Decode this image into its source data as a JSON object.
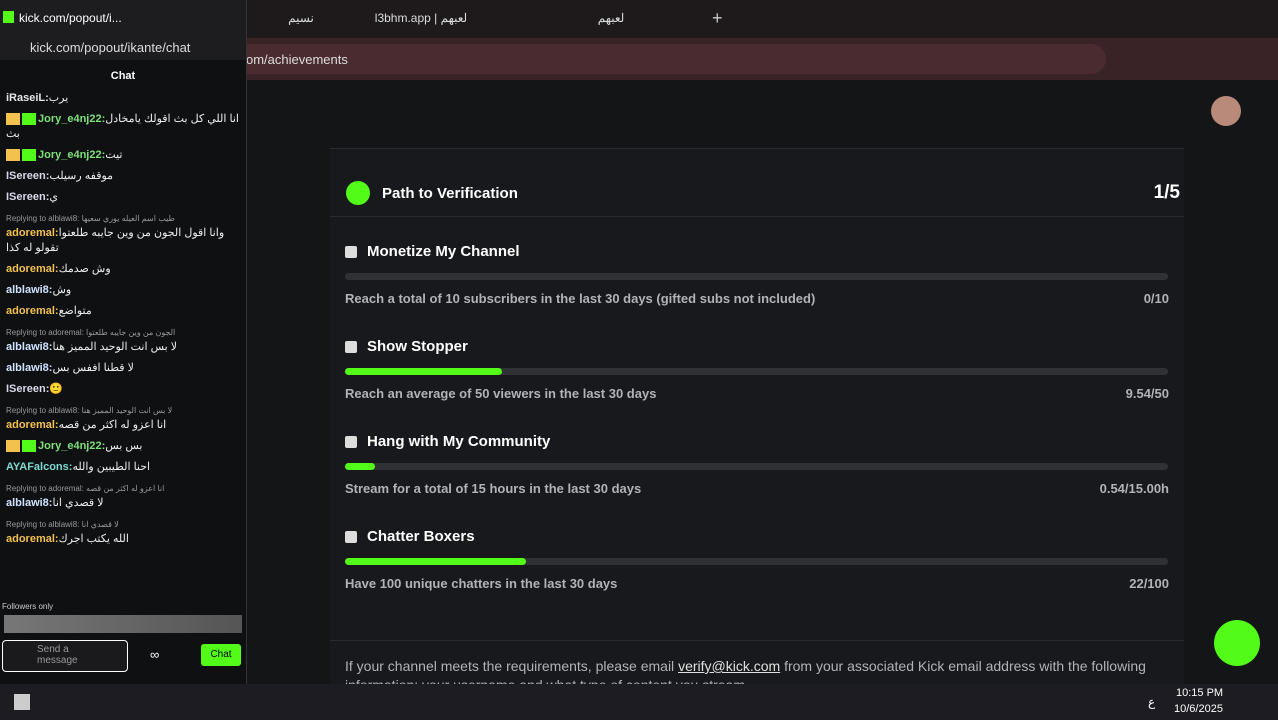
{
  "browser": {
    "tabs": [
      "نسيم",
      "l3bhm.app | لعبهم",
      "لعبهم"
    ],
    "address": "om/achievements"
  },
  "popout": {
    "title": "kick.com/popout/i...",
    "url": "kick.com/popout/ikante/chat",
    "header": "Chat",
    "messages": [
      {
        "user": "iRaseiL:",
        "color": "#e6e6e6",
        "text": "يرب"
      },
      {
        "user": "Jory_e4nj22:",
        "color": "#7ee07a",
        "text": "انا اللي كل بث اقولك يامخادل بث",
        "badges": true
      },
      {
        "user": "Jory_e4nj22:",
        "color": "#7ee07a",
        "text": "تيت",
        "badges": true
      },
      {
        "user": "ISereen:",
        "color": "#d8d8e8",
        "text": "موقفه رسيلب"
      },
      {
        "user": "ISereen:",
        "color": "#d8d8e8",
        "text": "ي"
      },
      {
        "reply": "Replying to alblawi8: طيب اسم العيله يوري سعيها",
        "user": "adoremal:",
        "color": "#f2c14e",
        "text": "وانا اقول الجون من وين جايبه طلعتوا تقولو له كذا"
      },
      {
        "user": "adoremal:",
        "color": "#f2c14e",
        "text": "وش صدمك"
      },
      {
        "user": "alblawi8:",
        "color": "#cfe3ff",
        "text": "وش"
      },
      {
        "user": "adoremal:",
        "color": "#f2c14e",
        "text": "متواضع"
      },
      {
        "reply": "Replying to adoremal: الجون من وين جايبه طلعتوا",
        "user": "alblawi8:",
        "color": "#cfe3ff",
        "text": "لا بس انت الوحيد المميز هنا"
      },
      {
        "user": "alblawi8:",
        "color": "#cfe3ff",
        "text": "لا قطنا اففس بس"
      },
      {
        "user": "ISereen:",
        "color": "#d8d8e8",
        "text": "🙂"
      },
      {
        "reply": "Replying to alblawi8: لا بس انت الوحيد المميز هنا",
        "user": "adoremal:",
        "color": "#f2c14e",
        "text": "انا اعزو له اكثر من قصه"
      },
      {
        "user": "Jory_e4nj22:",
        "color": "#7ee07a",
        "text": "بس بس",
        "badges": true
      },
      {
        "user": "AYAFalcons:",
        "color": "#7fd8d0",
        "text": "احنا الطيبين والله"
      },
      {
        "reply": "Replying to adoremal: انا اعزو له اكثر من قصه",
        "user": "alblawi8:",
        "color": "#cfe3ff",
        "text": "لا قصدي انا"
      },
      {
        "reply": "Replying to alblawi8: لا قصدي انا",
        "user": "adoremal:",
        "color": "#f2c14e",
        "text": "الله يكتب اجرك"
      }
    ],
    "followers_only": "Followers only",
    "input_placeholder": "Send a message",
    "badge": "∞",
    "send_button": "Chat"
  },
  "verification": {
    "title": "Path to Verification",
    "step": "1/5",
    "sections": [
      {
        "title": "Monetize My Channel",
        "description": "Reach a total of 10 subscribers in the last 30 days (gifted subs not included)",
        "current": 0,
        "target": 10,
        "label": "0/10"
      },
      {
        "title": "Show Stopper",
        "description": "Reach an average of 50 viewers in the last 30 days",
        "current": 9.54,
        "target": 50,
        "label": "9.54/50"
      },
      {
        "title": "Hang with My Community",
        "description": "Stream for a total of 15 hours in the last 30 days",
        "current": 0.54,
        "target": 15,
        "label": "0.54/15.00h"
      },
      {
        "title": "Chatter Boxers",
        "description": "Have 100 unique chatters in the last 30 days",
        "current": 22,
        "target": 100,
        "label": "22/100"
      }
    ],
    "footer_before": "If your channel meets the requirements, please email",
    "email": "verify@kick.com",
    "footer_after": "from your associated Kick email address with the following information: your username and what type of content you stream."
  },
  "taskbar": {
    "language": "ع",
    "time": "10:15 PM",
    "date": "10/6/2025"
  }
}
